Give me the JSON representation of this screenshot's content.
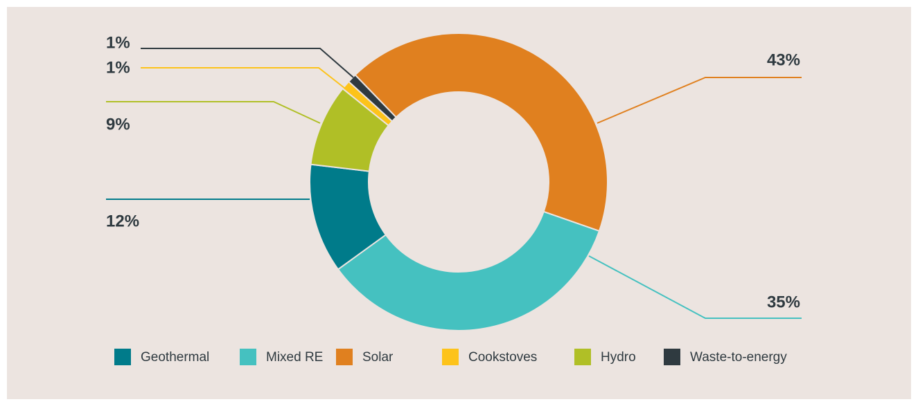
{
  "chart_data": {
    "type": "donut",
    "categories": [
      "Geothermal",
      "Mixed RE",
      "Solar",
      "Cookstoves",
      "Hydro",
      "Waste-to-energy"
    ],
    "values": [
      12,
      35,
      43,
      1,
      9,
      1
    ],
    "value_labels": [
      "12%",
      "35%",
      "43%",
      "1%",
      "9%",
      "1%"
    ],
    "colors": [
      "#007b8a",
      "#45c1c0",
      "#e0801f",
      "#fdc31a",
      "#b0bf26",
      "#2f3a40"
    ],
    "legend": "bottom"
  }
}
